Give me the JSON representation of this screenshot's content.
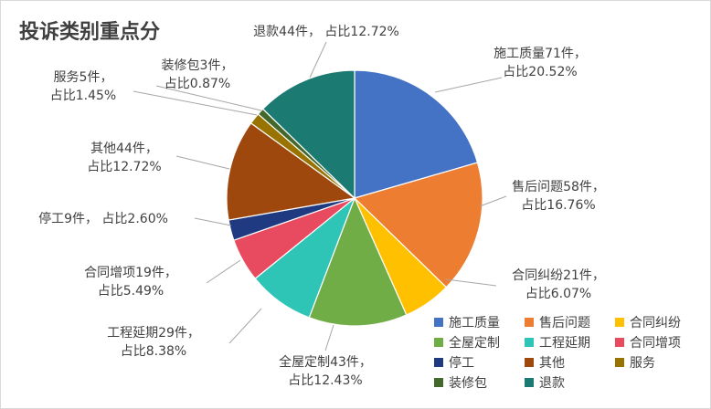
{
  "chart_data": {
    "type": "pie",
    "title": "投诉类别重点分",
    "unit": "件",
    "share_prefix": "占比",
    "start_angle_deg": 0,
    "direction": "clockwise",
    "legend_position": "bottom-right",
    "slices": [
      {
        "name": "施工质量",
        "value": 71,
        "percent": "20.52%",
        "color": "#4472C4"
      },
      {
        "name": "售后问题",
        "value": 58,
        "percent": "16.76%",
        "color": "#ED7D31"
      },
      {
        "name": "合同纠纷",
        "value": 21,
        "percent": "6.07%",
        "color": "#FFC000"
      },
      {
        "name": "全屋定制",
        "value": 43,
        "percent": "12.43%",
        "color": "#70AD47"
      },
      {
        "name": "工程延期",
        "value": 29,
        "percent": "8.38%",
        "color": "#2EC4B6"
      },
      {
        "name": "合同增项",
        "value": 19,
        "percent": "5.49%",
        "color": "#E84A5F"
      },
      {
        "name": "停工",
        "value": 9,
        "percent": "2.60%",
        "color": "#203A82"
      },
      {
        "name": "其他",
        "value": 44,
        "percent": "12.72%",
        "color": "#9E480E"
      },
      {
        "name": "服务",
        "value": 5,
        "percent": "1.45%",
        "color": "#997300"
      },
      {
        "name": "装修包",
        "value": 3,
        "percent": "0.87%",
        "color": "#43682B"
      },
      {
        "name": "退款",
        "value": 44,
        "percent": "12.72%",
        "color": "#1B7A72"
      }
    ]
  }
}
